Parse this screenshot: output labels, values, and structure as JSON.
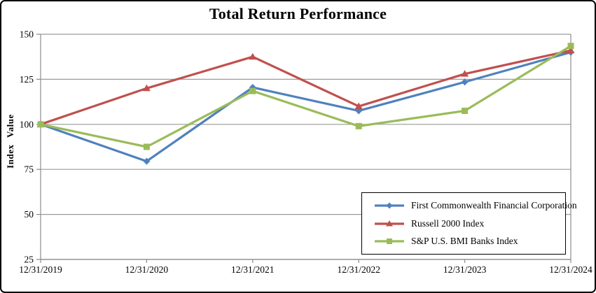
{
  "chart_data": {
    "type": "line",
    "title": "Total Return Performance",
    "xlabel": "",
    "ylabel": "Index Value",
    "ylim": [
      25,
      150
    ],
    "ytick_step": 25,
    "yticks": [
      25,
      50,
      75,
      100,
      125,
      150
    ],
    "grid": true,
    "legend_position": "inside-bottom-right",
    "axis_color": "#8c8c8c",
    "gridline_color": "#9a9a9a",
    "categories": [
      "12/31/2019",
      "12/31/2020",
      "12/31/2021",
      "12/31/2022",
      "12/31/2023",
      "12/31/2024"
    ],
    "series": [
      {
        "name": "First Commonwealth Financial Corporation",
        "color": "#4F81BD",
        "marker": "diamond",
        "values": [
          100,
          79.5,
          120.5,
          107.5,
          123.5,
          140
        ]
      },
      {
        "name": "Russell 2000 Index",
        "color": "#C0504D",
        "marker": "triangle",
        "values": [
          100,
          120,
          137.5,
          110,
          128,
          141
        ]
      },
      {
        "name": "S&P U.S. BMI Banks Index",
        "color": "#9BBB59",
        "marker": "square",
        "values": [
          100,
          87.5,
          118.5,
          99,
          107.5,
          143.5
        ]
      }
    ]
  }
}
